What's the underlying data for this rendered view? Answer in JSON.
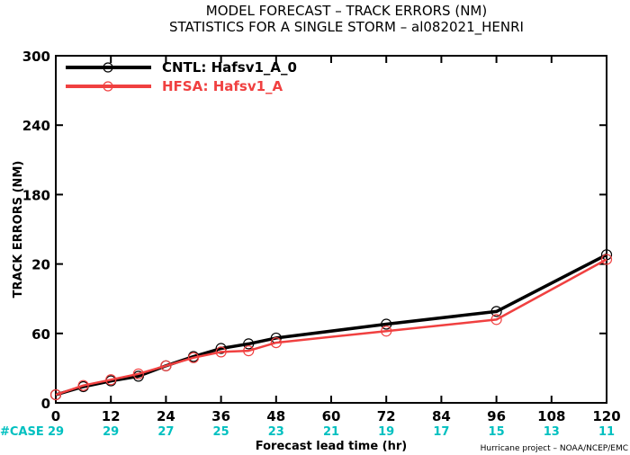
{
  "chart_data": {
    "type": "line",
    "title_line1": "MODEL FORECAST – TRACK ERRORS (NM)",
    "title_line2": "STATISTICS FOR A SINGLE STORM – al082021_HENRI",
    "xlabel": "Forecast lead time (hr)",
    "ylabel": "TRACK ERRORS (NM)",
    "credit": "Hurricane project – NOAA/NCEP/EMC",
    "xlim": [
      0,
      120
    ],
    "ylim": [
      0,
      300
    ],
    "x_ticks": [
      "0",
      "12",
      "24",
      "36",
      "48",
      "60",
      "72",
      "84",
      "96",
      "108",
      "120"
    ],
    "y_ticks": [
      "0",
      "60",
      "120",
      "180",
      "240",
      "300"
    ],
    "y_tick_display": [
      "0",
      "60",
      "",
      "180",
      "240",
      "300"
    ],
    "y_tick_display_overlap": [
      "",
      "",
      "20",
      "",
      "",
      ""
    ],
    "grid": false,
    "legend_position": "top-left",
    "case_label": "#CASE",
    "case_color": "#00c0c0",
    "cases": [
      {
        "x": 0,
        "n": "29"
      },
      {
        "x": 12,
        "n": "29"
      },
      {
        "x": 24,
        "n": "27"
      },
      {
        "x": 36,
        "n": "25"
      },
      {
        "x": 48,
        "n": "23"
      },
      {
        "x": 60,
        "n": "21"
      },
      {
        "x": 72,
        "n": "19"
      },
      {
        "x": 84,
        "n": "17"
      },
      {
        "x": 96,
        "n": "15"
      },
      {
        "x": 108,
        "n": "13"
      },
      {
        "x": 120,
        "n": "11"
      }
    ],
    "series": [
      {
        "name": "CNTL: Hafsv1_A_0",
        "color": "#000000",
        "x": [
          0,
          6,
          12,
          18,
          24,
          30,
          36,
          42,
          48,
          72,
          96,
          120
        ],
        "y": [
          7,
          14,
          19,
          23,
          32,
          40,
          47,
          51,
          56,
          68,
          79,
          128
        ]
      },
      {
        "name": "HFSA: Hafsv1_A",
        "color": "#f04040",
        "x": [
          0,
          6,
          12,
          18,
          24,
          30,
          36,
          42,
          48,
          72,
          96,
          120
        ],
        "y": [
          7,
          15,
          20,
          25,
          32,
          39,
          44,
          45,
          52,
          62,
          72,
          124
        ]
      }
    ]
  }
}
